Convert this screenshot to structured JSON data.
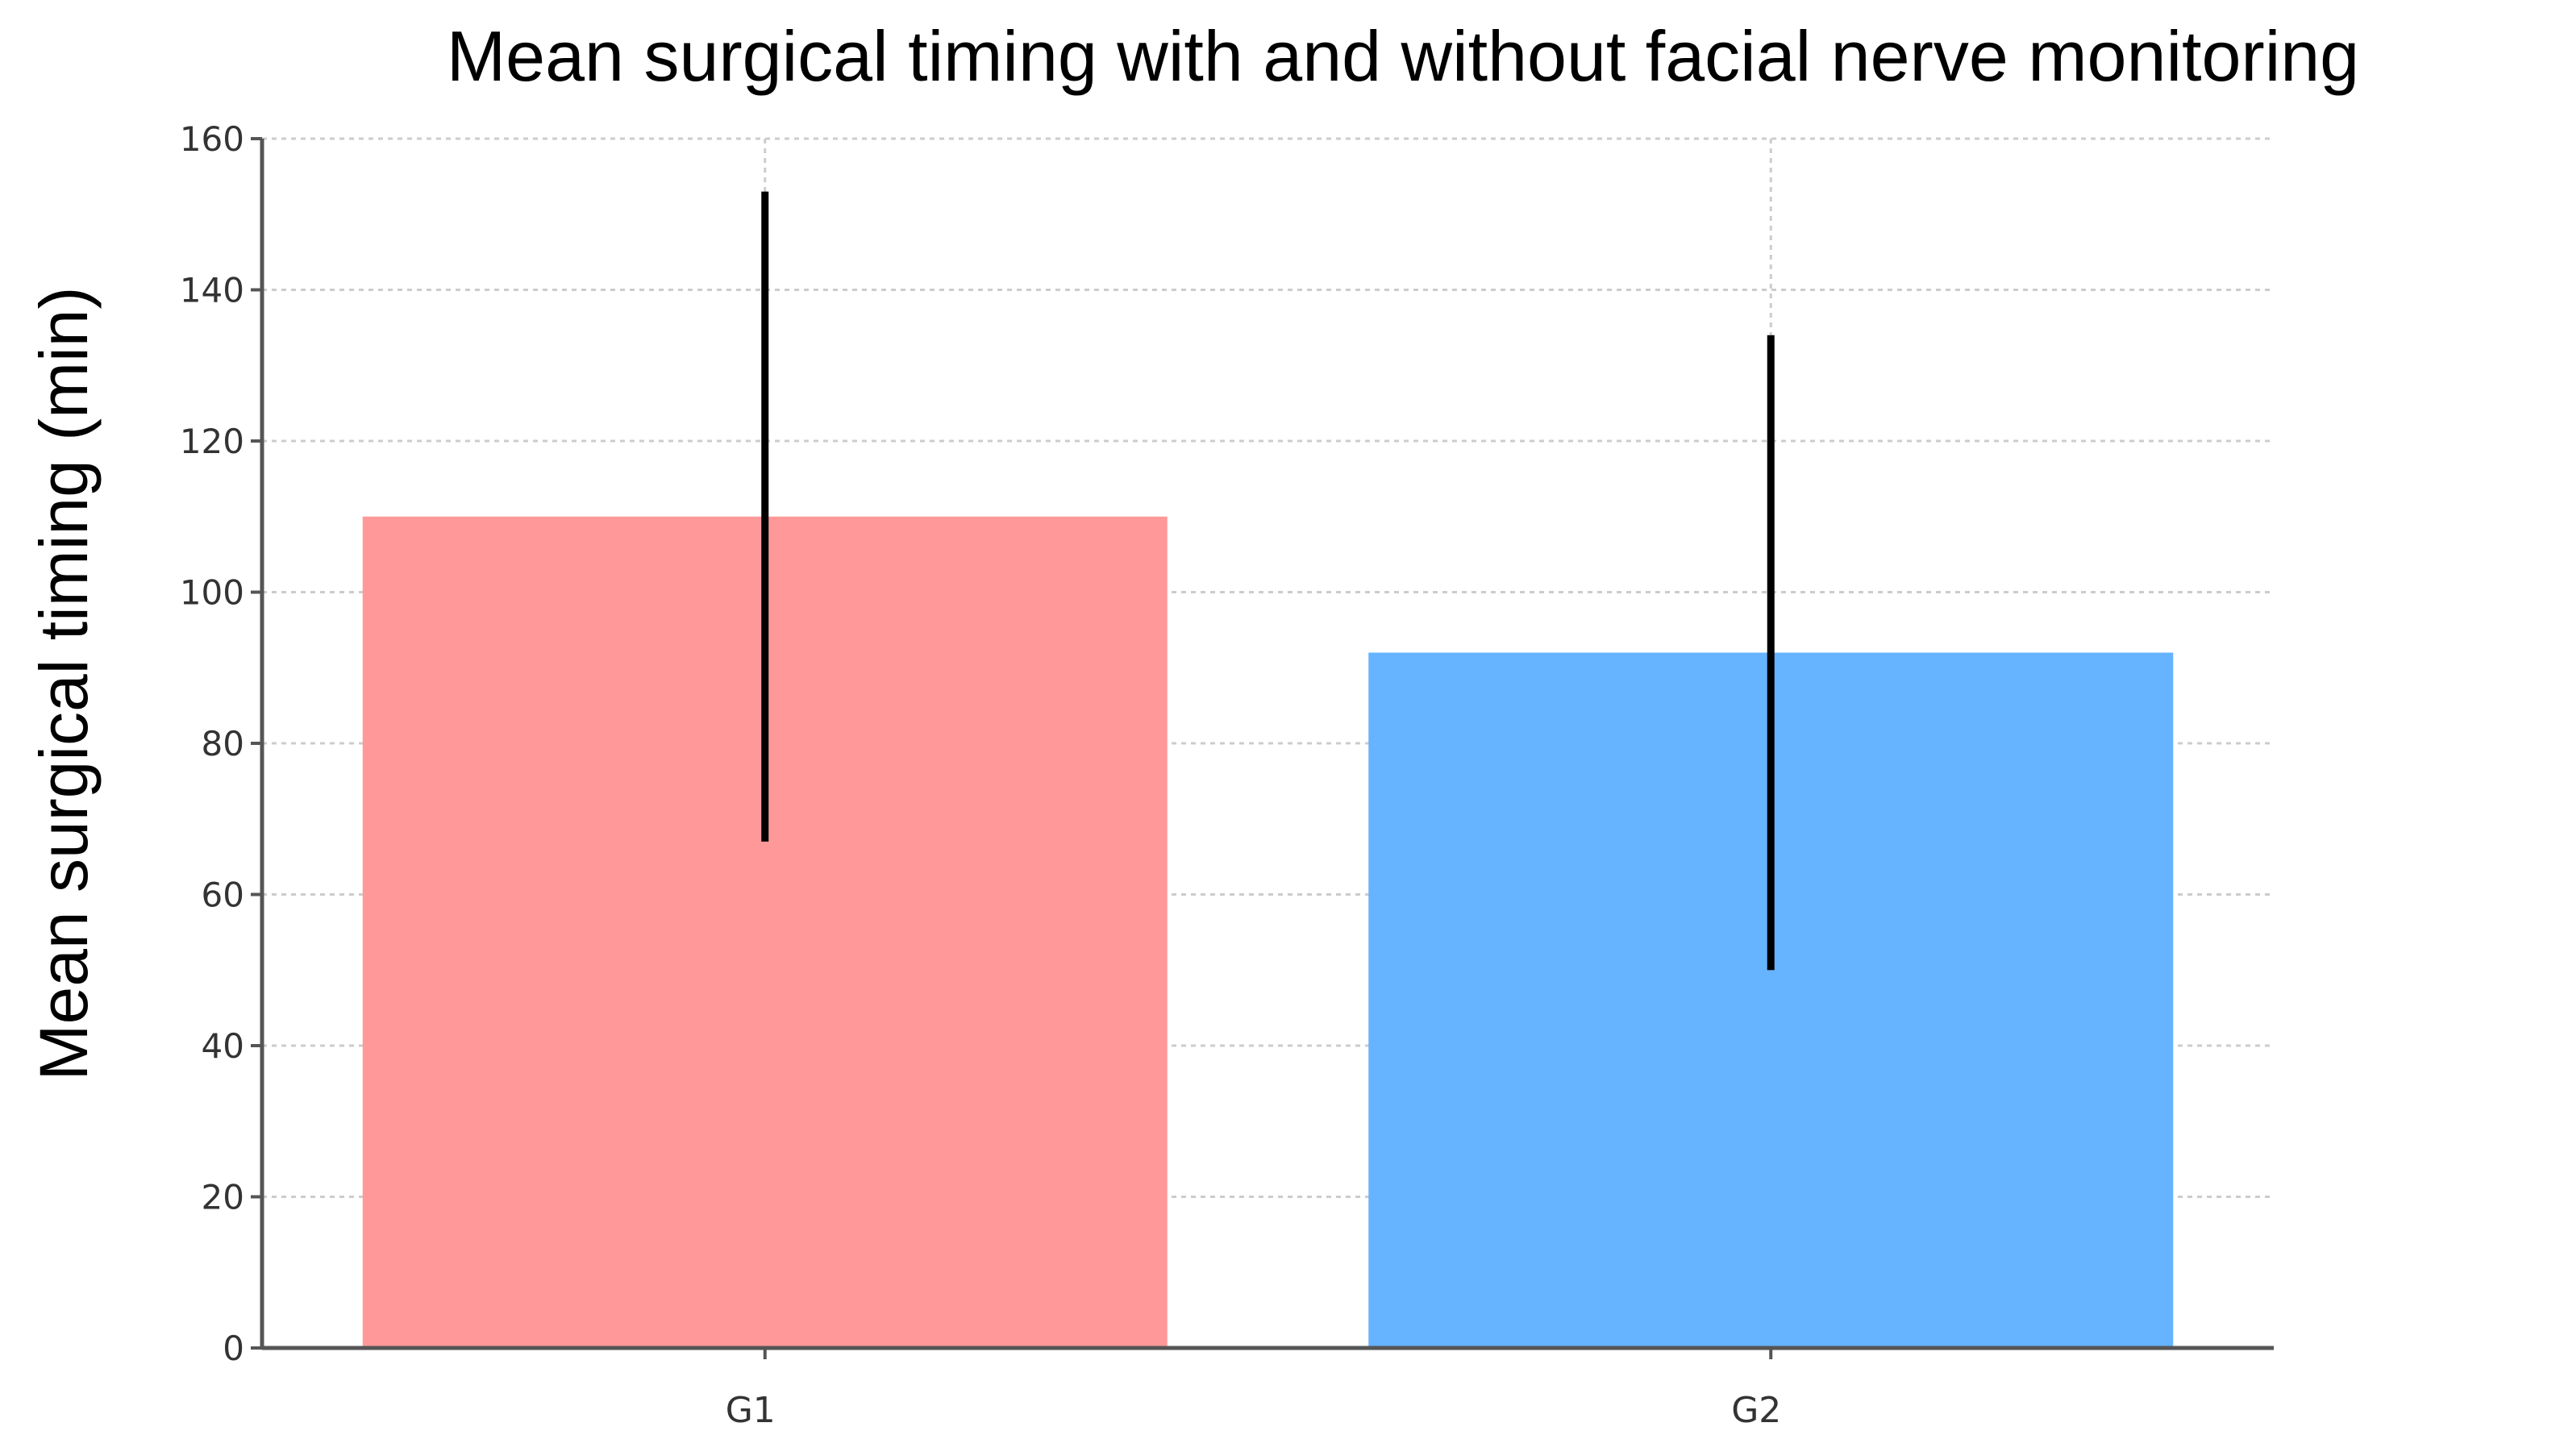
{
  "chart_data": {
    "type": "bar",
    "title": "Mean surgical timing with and without facial nerve monitoring",
    "xlabel": "",
    "ylabel": "Mean surgical timing (min)",
    "categories": [
      "G1",
      "G2"
    ],
    "values": [
      110,
      92
    ],
    "error_low": [
      67,
      50
    ],
    "error_high": [
      153,
      134
    ],
    "colors": [
      "#FF9999",
      "#66B3FF"
    ],
    "ylim": [
      0,
      160
    ],
    "yticks": [
      0,
      20,
      40,
      60,
      80,
      100,
      120,
      140,
      160
    ],
    "grid": true
  }
}
